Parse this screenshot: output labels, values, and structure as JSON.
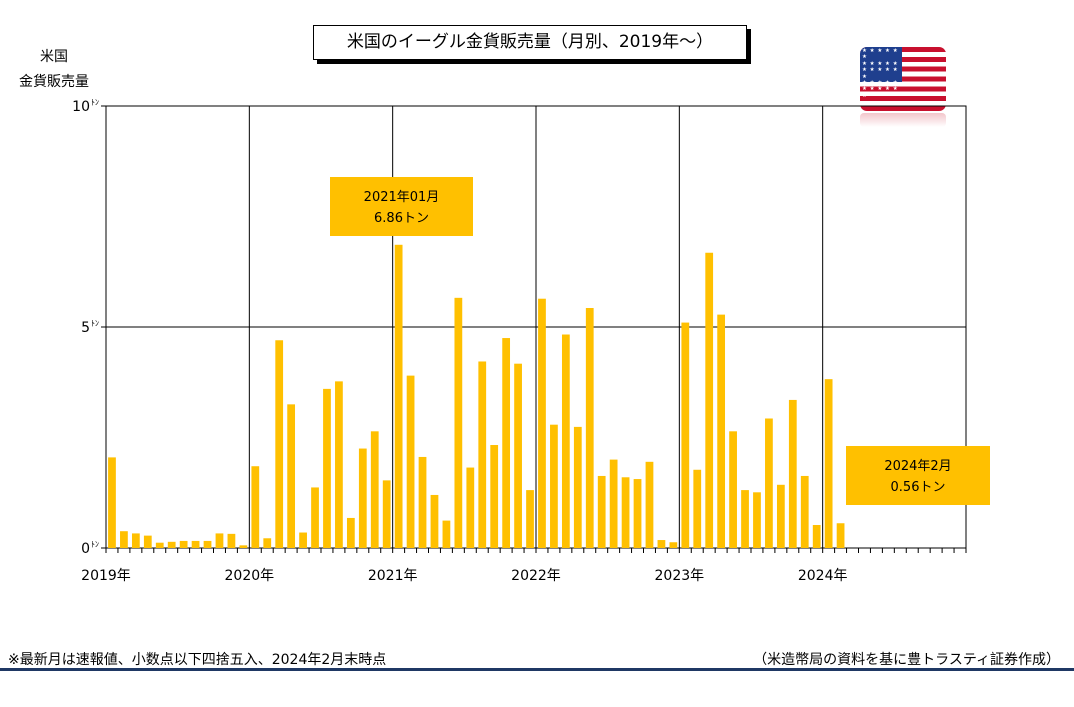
{
  "title": "米国のイーグル金貨販売量（月別、2019年～）",
  "y_title": [
    "米国",
    "金貨販売量"
  ],
  "footnote": "※最新月は速報値、小数点以下四捨五入、2024年2月末時点",
  "source": "（米造幣局の資料を基に豊トラスティ証券作成）",
  "flag_icon": "us-flag-icon",
  "colors": {
    "bar": "#ffc000",
    "callout": "#ffc000",
    "grid": "#000000",
    "rule": "#1f3864"
  },
  "chart_data": {
    "type": "bar",
    "unit": "トン",
    "ylim": [
      0,
      10
    ],
    "yticks": [
      {
        "value": 0,
        "num": "0",
        "unit": "ﾄﾝ"
      },
      {
        "value": 5,
        "num": "5",
        "unit": "ﾄﾝ"
      },
      {
        "value": 10,
        "num": "10",
        "unit": "ﾄﾝ"
      }
    ],
    "year_labels": [
      "2019年",
      "2020年",
      "2021年",
      "2022年",
      "2023年",
      "2024年"
    ],
    "months_on_axis": 72,
    "x": [
      "2019-01",
      "2019-02",
      "2019-03",
      "2019-04",
      "2019-05",
      "2019-06",
      "2019-07",
      "2019-08",
      "2019-09",
      "2019-10",
      "2019-11",
      "2019-12",
      "2020-01",
      "2020-02",
      "2020-03",
      "2020-04",
      "2020-05",
      "2020-06",
      "2020-07",
      "2020-08",
      "2020-09",
      "2020-10",
      "2020-11",
      "2020-12",
      "2021-01",
      "2021-02",
      "2021-03",
      "2021-04",
      "2021-05",
      "2021-06",
      "2021-07",
      "2021-08",
      "2021-09",
      "2021-10",
      "2021-11",
      "2021-12",
      "2022-01",
      "2022-02",
      "2022-03",
      "2022-04",
      "2022-05",
      "2022-06",
      "2022-07",
      "2022-08",
      "2022-09",
      "2022-10",
      "2022-11",
      "2022-12",
      "2023-01",
      "2023-02",
      "2023-03",
      "2023-04",
      "2023-05",
      "2023-06",
      "2023-07",
      "2023-08",
      "2023-09",
      "2023-10",
      "2023-11",
      "2023-12",
      "2024-01",
      "2024-02"
    ],
    "values": [
      2.05,
      0.38,
      0.33,
      0.28,
      0.12,
      0.14,
      0.16,
      0.16,
      0.16,
      0.33,
      0.32,
      0.06,
      1.85,
      0.22,
      4.7,
      3.25,
      0.35,
      1.37,
      3.6,
      3.77,
      0.68,
      2.25,
      2.64,
      1.53,
      6.86,
      3.9,
      2.06,
      1.2,
      0.62,
      5.66,
      1.82,
      4.22,
      2.33,
      4.75,
      4.17,
      1.31,
      5.64,
      2.79,
      4.83,
      2.74,
      5.43,
      1.63,
      2.0,
      1.6,
      1.56,
      1.95,
      0.18,
      0.13,
      5.1,
      1.77,
      6.68,
      5.28,
      2.64,
      1.31,
      1.26,
      2.93,
      1.43,
      3.35,
      1.63,
      0.52,
      3.82,
      0.56
    ],
    "grid": true,
    "annotations": [
      {
        "lines": [
          "2021年01月",
          "6.86トン"
        ],
        "month": "2021-01"
      },
      {
        "lines": [
          "2024年2月",
          "0.56トン"
        ],
        "month": "2024-02"
      }
    ]
  }
}
